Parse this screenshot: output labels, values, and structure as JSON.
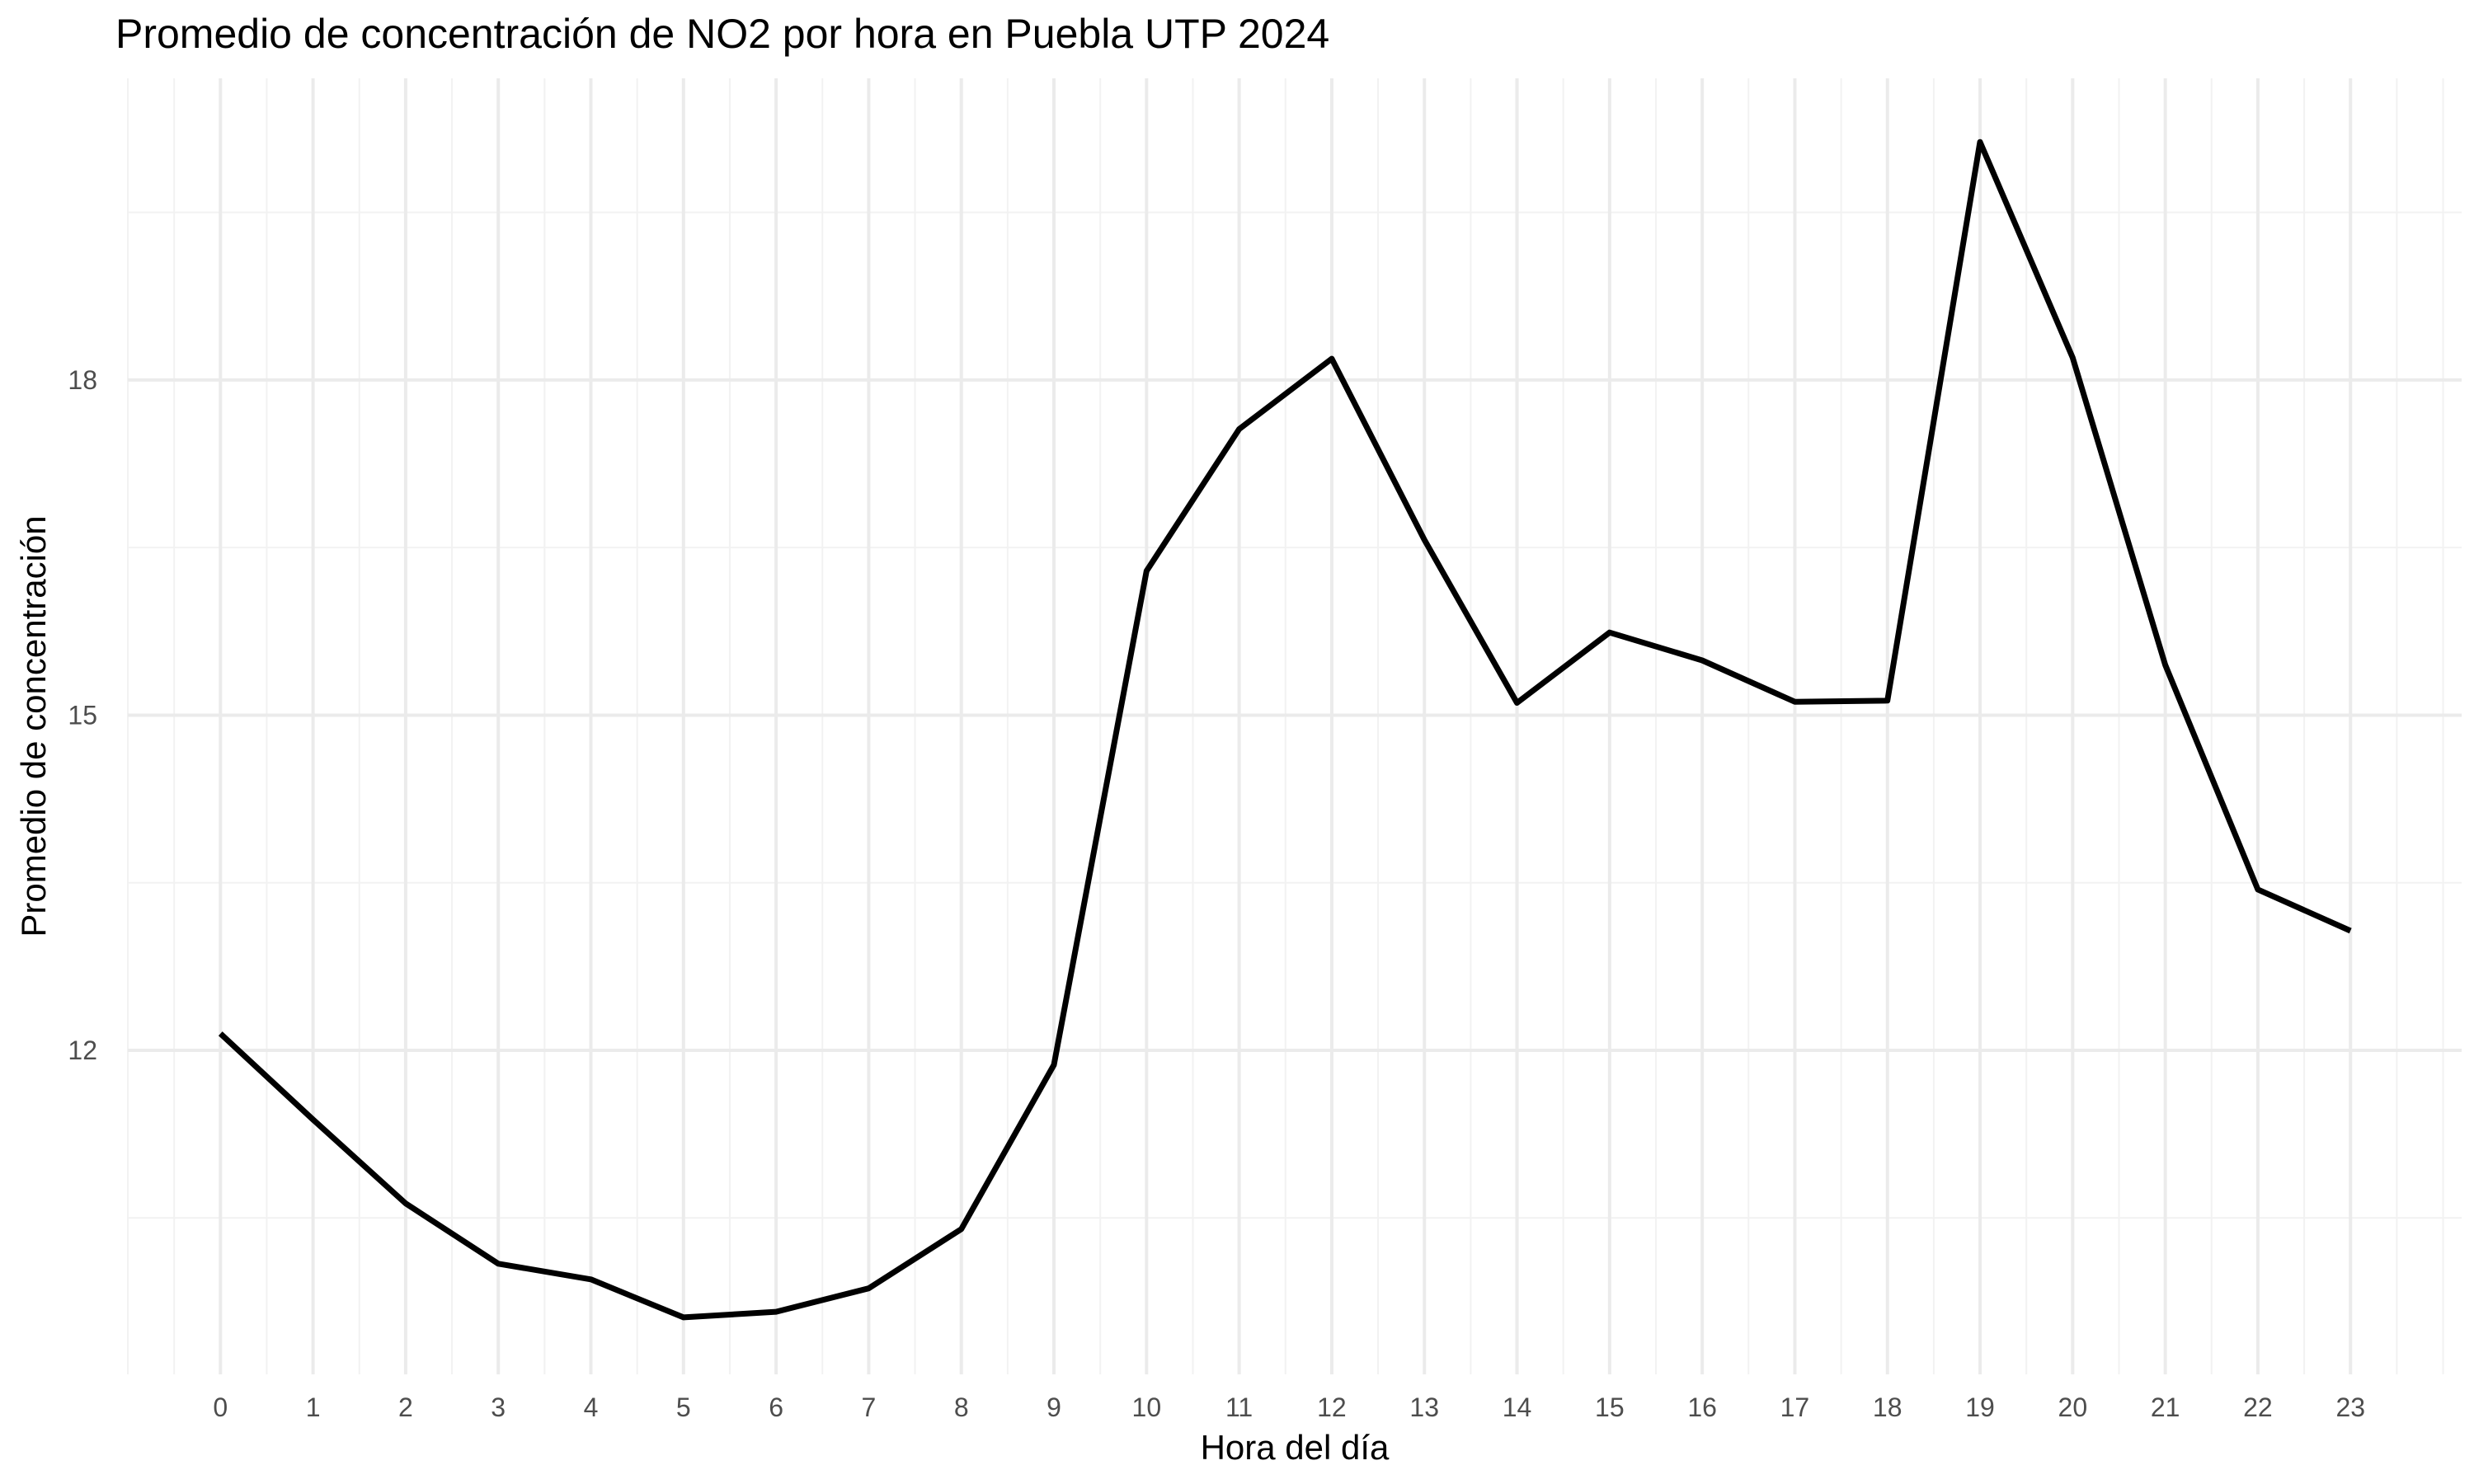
{
  "chart_data": {
    "type": "line",
    "title": "Promedio de concentración de NO2 por hora en Puebla UTP 2024",
    "xlabel": "Hora del día",
    "ylabel": "Promedio de concentración",
    "x": [
      0,
      1,
      2,
      3,
      4,
      5,
      6,
      7,
      8,
      9,
      10,
      11,
      12,
      13,
      14,
      15,
      16,
      17,
      18,
      19,
      20,
      21,
      22,
      23
    ],
    "x_tick_labels": [
      "0",
      "1",
      "2",
      "3",
      "4",
      "5",
      "6",
      "7",
      "8",
      "9",
      "10",
      "11",
      "12",
      "13",
      "14",
      "15",
      "16",
      "17",
      "18",
      "19",
      "20",
      "21",
      "22",
      "23"
    ],
    "y_tick_labels": [
      "12",
      "15",
      "18"
    ],
    "y_ticks": [
      12,
      15,
      18
    ],
    "xlim": [
      -1,
      24.2
    ],
    "ylim": [
      9.1,
      20.7
    ],
    "series": [
      {
        "values": [
          12.15,
          11.38,
          10.63,
          10.09,
          9.95,
          9.61,
          9.66,
          9.87,
          10.4,
          11.87,
          16.29,
          17.56,
          18.19,
          16.57,
          15.11,
          15.74,
          15.49,
          15.12,
          15.13,
          20.13,
          18.2,
          15.45,
          13.44,
          13.07
        ],
        "color": "#000000"
      }
    ],
    "grid": true,
    "legend": "none"
  }
}
